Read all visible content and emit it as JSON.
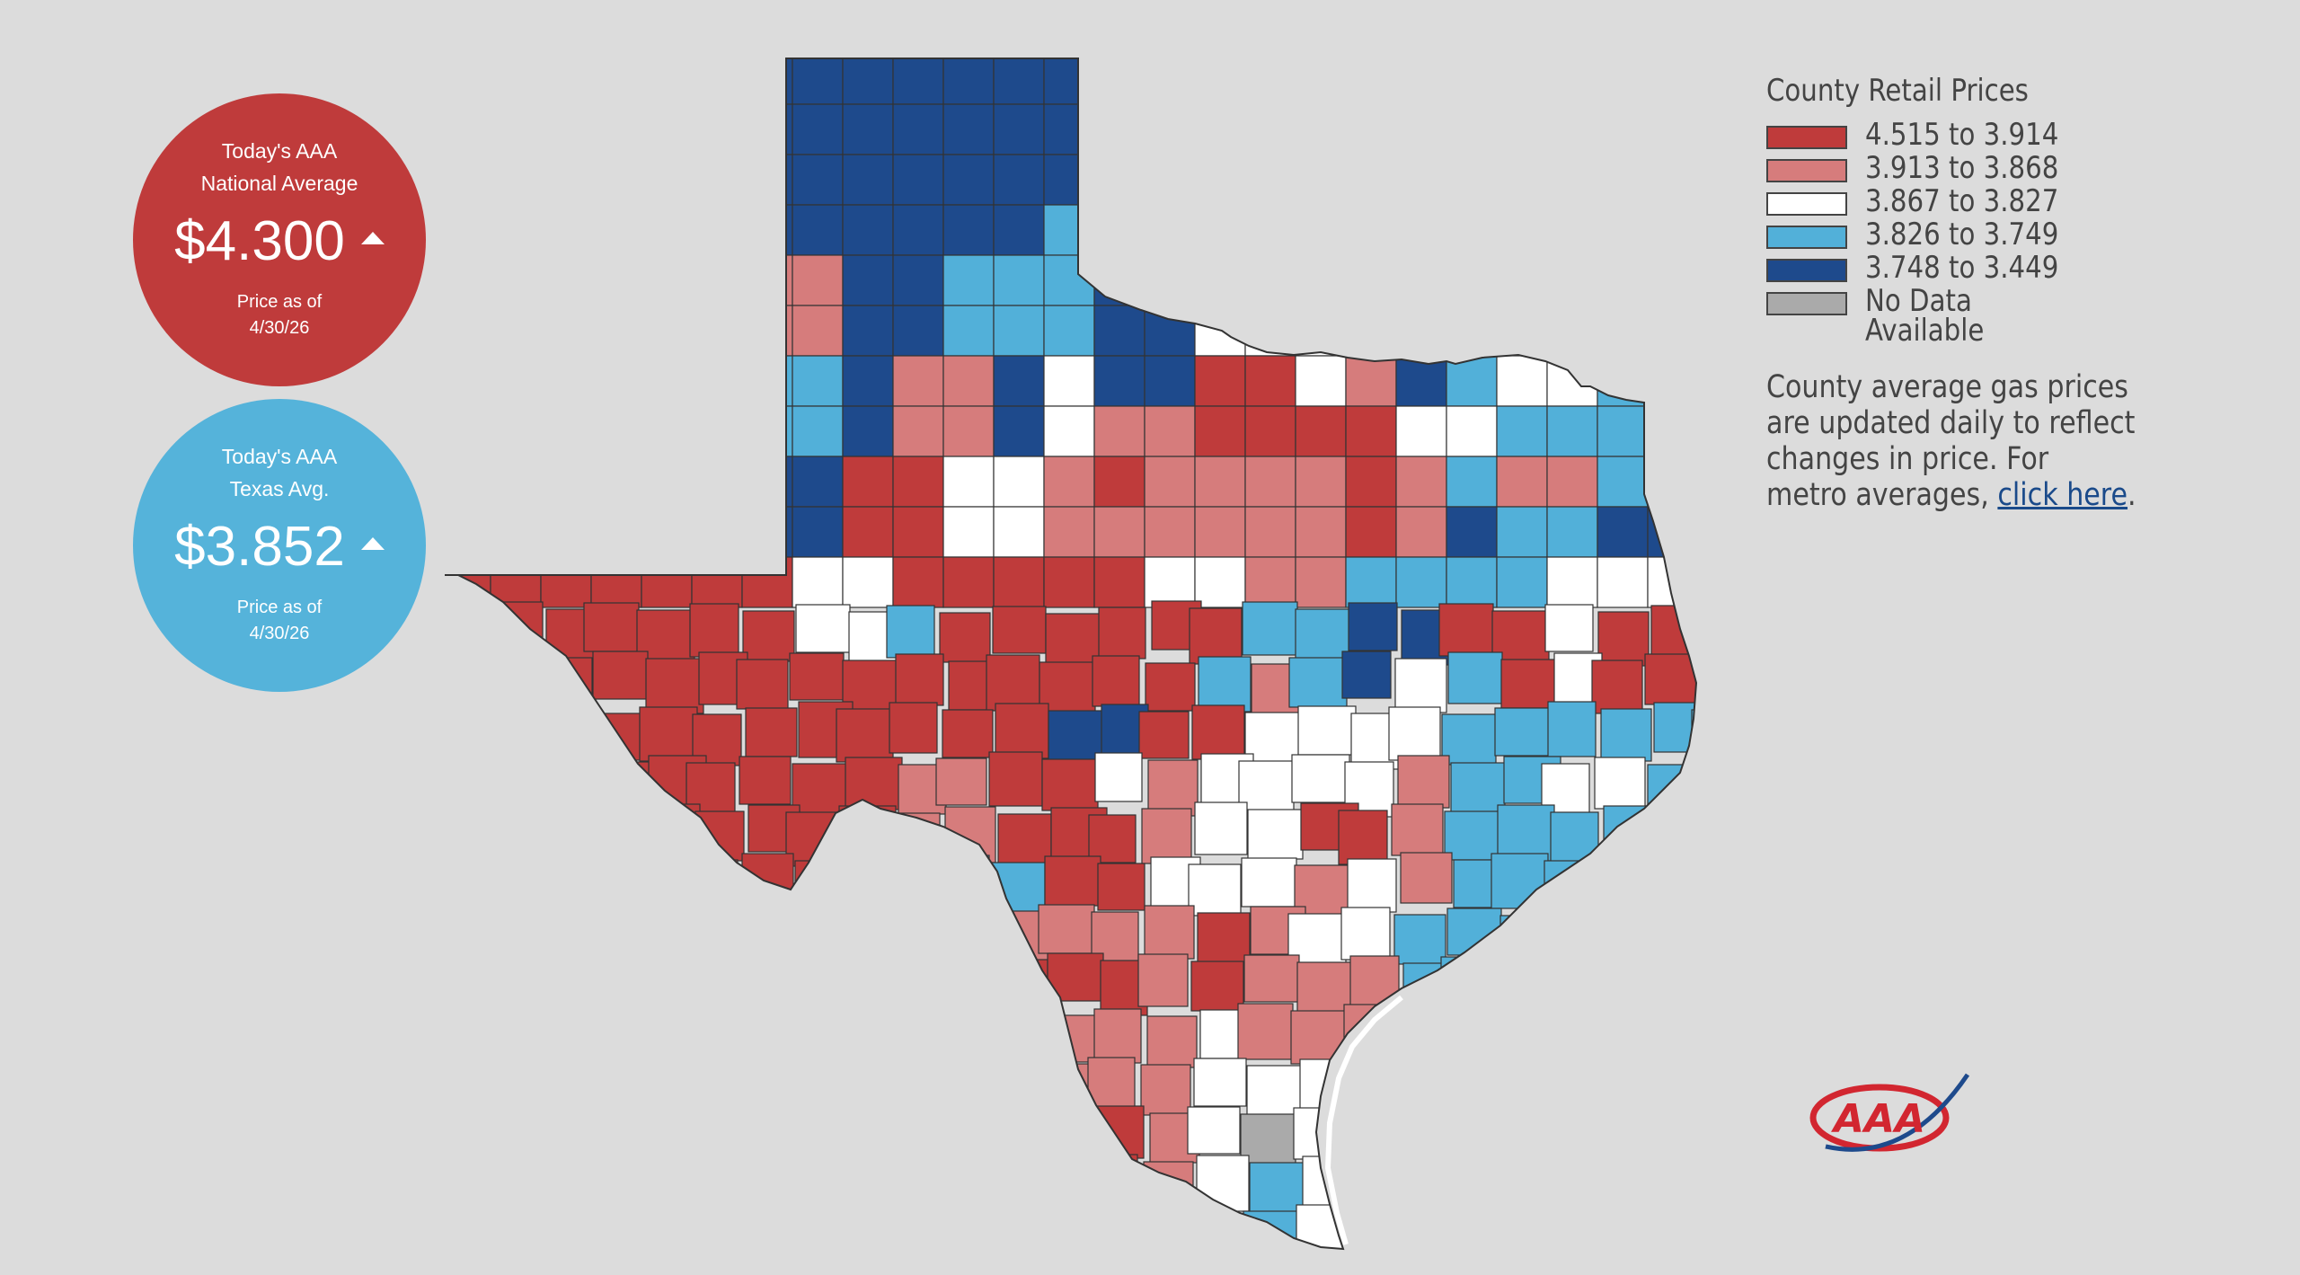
{
  "national": {
    "label_line1": "Today's AAA",
    "label_line2": "National Average",
    "price": "$4.300",
    "asof_line1": "Price as of",
    "asof_line2": "4/30/26",
    "trend": "up",
    "color": "#bf3b3b"
  },
  "texas": {
    "label_line1": "Today's AAA",
    "label_line2": "Texas Avg.",
    "price": "$3.852",
    "asof_line1": "Price as of",
    "asof_line2": "4/30/26",
    "trend": "up",
    "color": "#55b3da"
  },
  "legend": {
    "title": "County Retail Prices",
    "items": [
      {
        "label": "4.515 to 3.914",
        "color": "#bf3b3b"
      },
      {
        "label": "3.913 to 3.868",
        "color": "#d67c7c"
      },
      {
        "label": "3.867 to 3.827",
        "color": "#ffffff"
      },
      {
        "label": "3.826 to 3.749",
        "color": "#52b0d9"
      },
      {
        "label": "3.748 to 3.449",
        "color": "#1e4a8c"
      },
      {
        "label": "No Data Available",
        "color": "#aaaaaa"
      }
    ],
    "note_text": "County average gas prices are updated daily to reflect changes in price. For metro averages, ",
    "note_link": "click here",
    "note_end": "."
  },
  "logo": {
    "text": "AAA",
    "icon": "aaa-logo-icon",
    "color": "#d22630",
    "swoosh_color": "#1e4a8c"
  }
}
